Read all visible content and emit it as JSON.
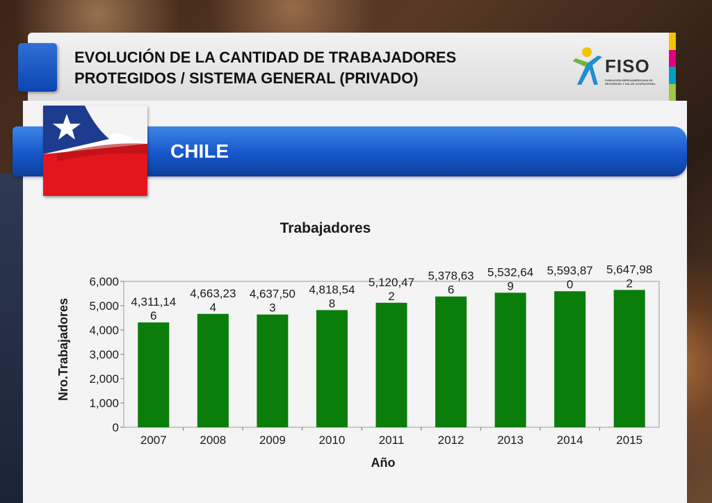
{
  "header": {
    "title_line1": "EVOLUCIÓN DE LA CANTIDAD DE TRABAJADORES",
    "title_line2": "PROTEGIDOS / SISTEMA GENERAL (PRIVADO)"
  },
  "logo": {
    "name": "FISO",
    "tagline": "FUNDACIÓN IBEROAMERICANA DE SEGURIDAD Y SALUD OCUPACIONAL",
    "icon": "fiso-figure-icon"
  },
  "country": {
    "label": "CHILE",
    "flag_icon": "chile-flag-icon"
  },
  "colors": {
    "blue": "#1556c9",
    "bar": "#0a7d0a",
    "stripes": [
      "#f2c500",
      "#e6007e",
      "#00a0c6",
      "#a3c644"
    ]
  },
  "chart_data": {
    "type": "bar",
    "title": "Trabajadores",
    "xlabel": "Año",
    "ylabel": "Nro.Trabajadores",
    "categories": [
      "2007",
      "2008",
      "2009",
      "2010",
      "2011",
      "2012",
      "2013",
      "2014",
      "2015"
    ],
    "values": [
      4311.146,
      4663.234,
      4637.503,
      4818.548,
      5120.472,
      5378.636,
      5532.649,
      5593.87,
      5647.982
    ],
    "data_labels": [
      [
        "4,311,14",
        "6"
      ],
      [
        "4,663,23",
        "4"
      ],
      [
        "4,637,50",
        "3"
      ],
      [
        "4,818,54",
        "8"
      ],
      [
        "5,120,47",
        "2"
      ],
      [
        "5,378,63",
        "6"
      ],
      [
        "5,532,64",
        "9"
      ],
      [
        "5,593,87",
        "0"
      ],
      [
        "5,647,98",
        "2"
      ]
    ],
    "yticks": [
      "0",
      "1,000",
      "2,000",
      "3,000",
      "4,000",
      "5,000",
      "6,000"
    ],
    "ylim": [
      0,
      6000
    ],
    "grid": false,
    "legend": "none"
  }
}
